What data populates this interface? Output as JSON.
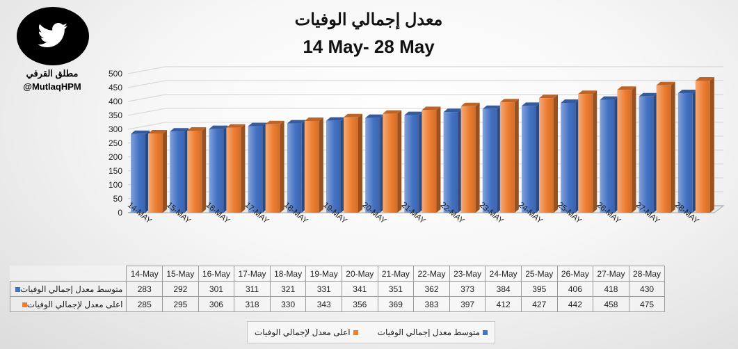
{
  "author": {
    "name": "مطلق القرفي",
    "handle": "@MutlaqHPM",
    "logo_icon": "twitter-bird-icon"
  },
  "chart_data": {
    "type": "bar",
    "title": "معدل إجمالي الوفيات",
    "subtitle": "14 May- 28 May",
    "categories": [
      "14-MAY",
      "15-MAY",
      "16-MAY",
      "17-MAY",
      "18-MAY",
      "19-MAY",
      "20-MAY",
      "21-MAY",
      "22-MAY",
      "23-MAY",
      "24-MAY",
      "25-MAY",
      "26-MAY",
      "27-MAY",
      "28-MAY"
    ],
    "table_categories": [
      "14-May",
      "15-May",
      "16-May",
      "17-May",
      "18-May",
      "19-May",
      "20-May",
      "21-May",
      "22-May",
      "23-May",
      "24-May",
      "25-May",
      "26-May",
      "27-May",
      "28-May"
    ],
    "series": [
      {
        "name": "متوسط معدل إجمالي الوفيات",
        "color": "#4472c4",
        "values": [
          283,
          292,
          301,
          311,
          321,
          331,
          341,
          351,
          362,
          373,
          384,
          395,
          406,
          418,
          430
        ]
      },
      {
        "name": "اعلى معدل لإجمالي الوفيات",
        "color": "#ed7d31",
        "values": [
          285,
          295,
          306,
          318,
          330,
          343,
          356,
          369,
          383,
          397,
          412,
          427,
          442,
          458,
          475
        ]
      }
    ],
    "yticks": [
      0,
      50,
      100,
      150,
      200,
      250,
      300,
      350,
      400,
      450,
      500
    ],
    "ylim": [
      0,
      500
    ],
    "grid": true,
    "legend_position": "bottom",
    "data_table": true
  }
}
